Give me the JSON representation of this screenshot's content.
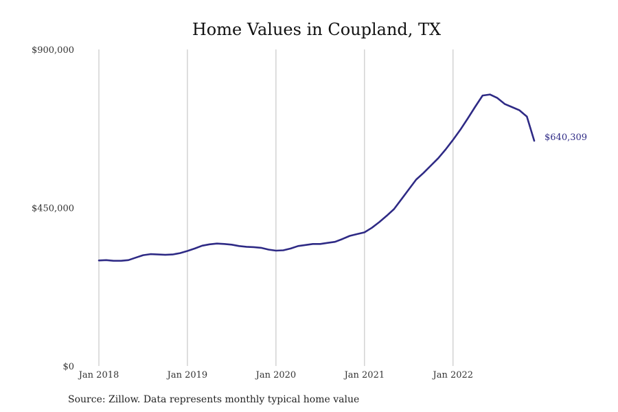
{
  "chart_data": {
    "type": "line",
    "title": "Home Values in Coupland, TX",
    "xlabel": "",
    "ylabel": "",
    "ylim": [
      0,
      900000
    ],
    "xlim": [
      "2018-01",
      "2022-12"
    ],
    "y_ticks": [
      {
        "value": 0,
        "label": "$0"
      },
      {
        "value": 450000,
        "label": "$450,000"
      },
      {
        "value": 900000,
        "label": "$900,000"
      }
    ],
    "x_ticks": [
      {
        "date": "2018-01",
        "label": "Jan 2018"
      },
      {
        "date": "2019-01",
        "label": "Jan 2019"
      },
      {
        "date": "2020-01",
        "label": "Jan 2020"
      },
      {
        "date": "2021-01",
        "label": "Jan 2021"
      },
      {
        "date": "2022-01",
        "label": "Jan 2022"
      }
    ],
    "grid": "vertical",
    "line_color": "#2e2a85",
    "end_label": "$640,309",
    "series": [
      {
        "x": [
          "2018-01",
          "2018-02",
          "2018-03",
          "2018-04",
          "2018-05",
          "2018-06",
          "2018-07",
          "2018-08",
          "2018-09",
          "2018-10",
          "2018-11",
          "2018-12",
          "2019-01",
          "2019-02",
          "2019-03",
          "2019-04",
          "2019-05",
          "2019-06",
          "2019-07",
          "2019-08",
          "2019-09",
          "2019-10",
          "2019-11",
          "2019-12",
          "2020-01",
          "2020-02",
          "2020-03",
          "2020-04",
          "2020-05",
          "2020-06",
          "2020-07",
          "2020-08",
          "2020-09",
          "2020-10",
          "2020-11",
          "2020-12",
          "2021-01",
          "2021-02",
          "2021-03",
          "2021-04",
          "2021-05",
          "2021-06",
          "2021-07",
          "2021-08",
          "2021-09",
          "2021-10",
          "2021-11",
          "2021-12",
          "2022-01",
          "2022-02",
          "2022-03",
          "2022-04",
          "2022-05",
          "2022-06",
          "2022-07",
          "2022-08",
          "2022-09",
          "2022-10",
          "2022-11",
          "2022-12"
        ],
        "values": [
          300000,
          301000,
          299000,
          299000,
          301000,
          308000,
          315000,
          318000,
          317000,
          316000,
          317000,
          321000,
          327000,
          334000,
          342000,
          346000,
          348000,
          347000,
          345000,
          341000,
          339000,
          338000,
          336000,
          331000,
          328000,
          329000,
          334000,
          341000,
          344000,
          347000,
          347000,
          350000,
          353000,
          361000,
          370000,
          375000,
          380000,
          393000,
          409000,
          427000,
          446000,
          474000,
          502000,
          530000,
          549000,
          570000,
          591000,
          616000,
          643000,
          672000,
          704000,
          737000,
          769000,
          772000,
          762000,
          745000,
          736000,
          727000,
          709000,
          640309
        ]
      }
    ]
  },
  "source_note": "Source: Zillow. Data represents monthly typical home value"
}
